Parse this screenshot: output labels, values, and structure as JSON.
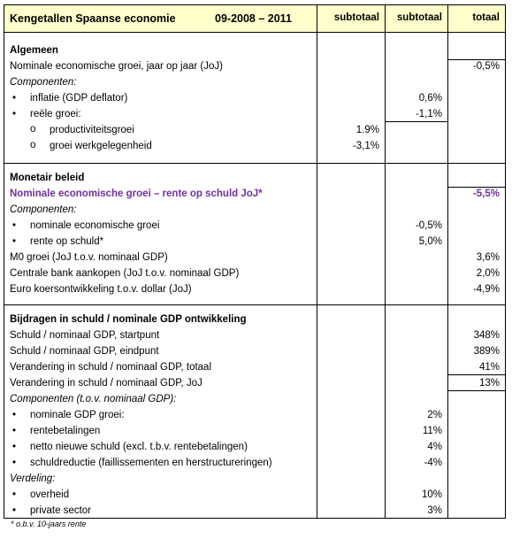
{
  "header": {
    "title": "Kengetallen Spaanse economie",
    "period": "09-2008 – 2011",
    "columns": [
      "subtotaal",
      "subtotaal",
      "totaal"
    ]
  },
  "sections": [
    {
      "title": "Algemeen",
      "rows": [
        {
          "label": "Nominale economische groei, jaar op jaar (JoJ)",
          "total": "-0,5%"
        },
        {
          "label": "Componenten:"
        },
        {
          "label": "inflatie (GDP deflator)",
          "sub2": "0,6%"
        },
        {
          "label": "reële groei:",
          "sub2": "-1,1%"
        },
        {
          "label": "productiviteitsgroei",
          "sub1": "1.9%"
        },
        {
          "label": "groei werkgelegenheid",
          "sub1": "-3,1%"
        }
      ]
    },
    {
      "title": "Monetair beleid",
      "rows": [
        {
          "label": "Nominale economische groei – rente op schuld JoJ*",
          "total": "-5,5%"
        },
        {
          "label": "Componenten:"
        },
        {
          "label": "nominale economische groei",
          "sub2": "-0,5%"
        },
        {
          "label": "rente op schuld*",
          "sub2": "5,0%"
        },
        {
          "label": "M0 groei (JoJ t.o.v. nominaal GDP)",
          "total": "3,6%"
        },
        {
          "label": "Centrale bank aankopen (JoJ t.o.v. nominaal GDP)",
          "total": "2,0%"
        },
        {
          "label": "Euro koersontwikkeling t.o.v. dollar (JoJ)",
          "total": "-4,9%"
        }
      ]
    },
    {
      "title": "Bijdragen in schuld / nominale GDP ontwikkeling",
      "rows": [
        {
          "label": "Schuld / nominaal GDP, startpunt",
          "total": "348%"
        },
        {
          "label": "Schuld / nominaal GDP, eindpunt",
          "total": "389%"
        },
        {
          "label": "Verandering in schuld / nominaal GDP, totaal",
          "total": "41%"
        },
        {
          "label": "Verandering in schuld / nominaal GDP, JoJ",
          "total": "13%"
        },
        {
          "label": "Componenten (t.o.v. nominaal GDP):"
        },
        {
          "label": "nominale GDP groei:",
          "sub2": "2%"
        },
        {
          "label": "rentebetalingen",
          "sub2": "11%"
        },
        {
          "label": "netto nieuwe schuld (excl. t.b.v. rentebetalingen)",
          "sub2": "4%"
        },
        {
          "label": "schuldreductie (faillissementen en herstructureringen)",
          "sub2": "-4%"
        },
        {
          "label": "Verdeling:"
        },
        {
          "label": "overheid",
          "sub2": "10%"
        },
        {
          "label": "private sector",
          "sub2": "3%"
        }
      ]
    }
  ],
  "footnote": "* o.b.v. 10-jaars rente"
}
